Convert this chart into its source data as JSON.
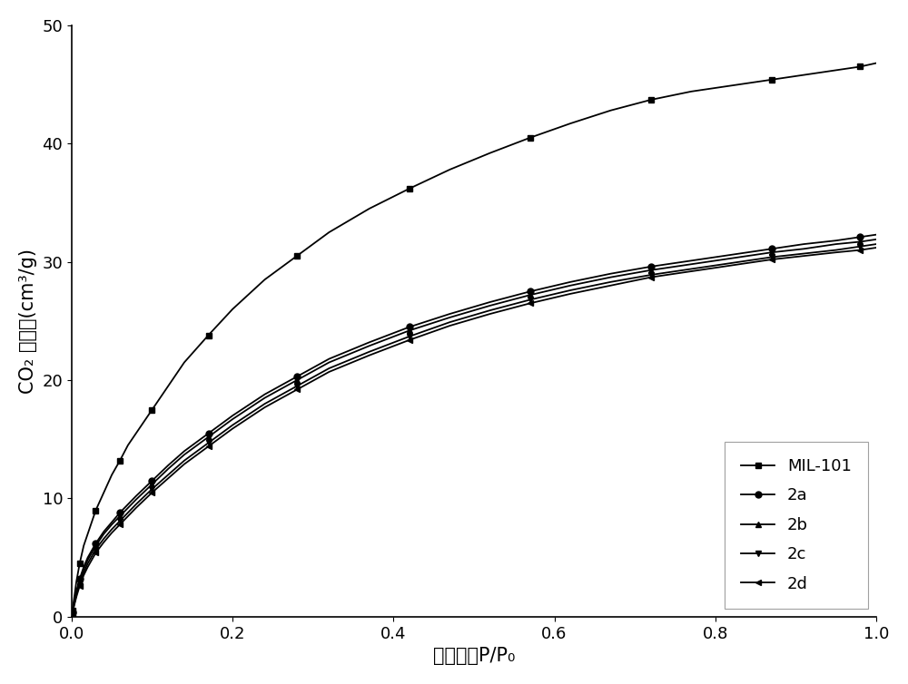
{
  "xlabel": "相对压强P/P₀",
  "ylabel": "CO₂ 吸附量(cm³/g)",
  "xlim": [
    0,
    1.0
  ],
  "ylim": [
    0,
    50
  ],
  "xticks": [
    0.0,
    0.2,
    0.4,
    0.6,
    0.8,
    1.0
  ],
  "yticks": [
    0,
    10,
    20,
    30,
    40,
    50
  ],
  "background_color": "#ffffff",
  "series": [
    {
      "label": "MIL-101",
      "marker": "s",
      "color": "#000000",
      "x": [
        0.001,
        0.003,
        0.006,
        0.01,
        0.015,
        0.02,
        0.03,
        0.04,
        0.05,
        0.06,
        0.07,
        0.08,
        0.1,
        0.12,
        0.14,
        0.17,
        0.2,
        0.24,
        0.28,
        0.32,
        0.37,
        0.42,
        0.47,
        0.52,
        0.57,
        0.62,
        0.67,
        0.72,
        0.77,
        0.82,
        0.87,
        0.91,
        0.95,
        0.98,
        1.0
      ],
      "y": [
        0.5,
        1.5,
        3.0,
        4.5,
        6.0,
        7.0,
        9.0,
        10.5,
        12.0,
        13.2,
        14.5,
        15.5,
        17.5,
        19.5,
        21.5,
        23.8,
        26.0,
        28.5,
        30.5,
        32.5,
        34.5,
        36.2,
        37.8,
        39.2,
        40.5,
        41.7,
        42.8,
        43.7,
        44.4,
        44.9,
        45.4,
        45.8,
        46.2,
        46.5,
        46.8
      ]
    },
    {
      "label": "2a",
      "marker": "o",
      "color": "#000000",
      "x": [
        0.001,
        0.003,
        0.006,
        0.01,
        0.015,
        0.02,
        0.03,
        0.04,
        0.05,
        0.06,
        0.07,
        0.08,
        0.1,
        0.12,
        0.14,
        0.17,
        0.2,
        0.24,
        0.28,
        0.32,
        0.37,
        0.42,
        0.47,
        0.52,
        0.57,
        0.62,
        0.67,
        0.72,
        0.77,
        0.82,
        0.87,
        0.91,
        0.95,
        0.98,
        1.0
      ],
      "y": [
        0.4,
        1.2,
        2.2,
        3.2,
        4.2,
        5.0,
        6.2,
        7.2,
        8.0,
        8.8,
        9.5,
        10.2,
        11.5,
        12.8,
        14.0,
        15.5,
        17.0,
        18.8,
        20.3,
        21.8,
        23.2,
        24.5,
        25.6,
        26.6,
        27.5,
        28.3,
        29.0,
        29.6,
        30.1,
        30.6,
        31.1,
        31.5,
        31.8,
        32.1,
        32.3
      ]
    },
    {
      "label": "2b",
      "marker": "^",
      "color": "#000000",
      "x": [
        0.001,
        0.003,
        0.006,
        0.01,
        0.015,
        0.02,
        0.03,
        0.04,
        0.05,
        0.06,
        0.07,
        0.08,
        0.1,
        0.12,
        0.14,
        0.17,
        0.2,
        0.24,
        0.28,
        0.32,
        0.37,
        0.42,
        0.47,
        0.52,
        0.57,
        0.62,
        0.67,
        0.72,
        0.77,
        0.82,
        0.87,
        0.91,
        0.95,
        0.98,
        1.0
      ],
      "y": [
        0.4,
        1.1,
        2.0,
        3.0,
        4.0,
        4.8,
        6.0,
        7.0,
        7.8,
        8.5,
        9.2,
        9.9,
        11.2,
        12.5,
        13.7,
        15.2,
        16.7,
        18.5,
        20.0,
        21.5,
        22.9,
        24.2,
        25.3,
        26.3,
        27.2,
        28.0,
        28.7,
        29.3,
        29.8,
        30.3,
        30.8,
        31.1,
        31.5,
        31.7,
        31.9
      ]
    },
    {
      "label": "2c",
      "marker": "v",
      "color": "#000000",
      "x": [
        0.001,
        0.003,
        0.006,
        0.01,
        0.015,
        0.02,
        0.03,
        0.04,
        0.05,
        0.06,
        0.07,
        0.08,
        0.1,
        0.12,
        0.14,
        0.17,
        0.2,
        0.24,
        0.28,
        0.32,
        0.37,
        0.42,
        0.47,
        0.52,
        0.57,
        0.62,
        0.67,
        0.72,
        0.77,
        0.82,
        0.87,
        0.91,
        0.95,
        0.98,
        1.0
      ],
      "y": [
        0.3,
        1.0,
        1.9,
        2.8,
        3.7,
        4.5,
        5.7,
        6.6,
        7.4,
        8.1,
        8.8,
        9.5,
        10.8,
        12.0,
        13.2,
        14.7,
        16.2,
        18.0,
        19.5,
        21.0,
        22.4,
        23.7,
        24.9,
        25.9,
        26.8,
        27.6,
        28.3,
        28.9,
        29.4,
        29.9,
        30.4,
        30.7,
        31.0,
        31.3,
        31.5
      ]
    },
    {
      "label": "2d",
      "marker": "<",
      "color": "#000000",
      "x": [
        0.001,
        0.003,
        0.006,
        0.01,
        0.015,
        0.02,
        0.03,
        0.04,
        0.05,
        0.06,
        0.07,
        0.08,
        0.1,
        0.12,
        0.14,
        0.17,
        0.2,
        0.24,
        0.28,
        0.32,
        0.37,
        0.42,
        0.47,
        0.52,
        0.57,
        0.62,
        0.67,
        0.72,
        0.77,
        0.82,
        0.87,
        0.91,
        0.95,
        0.98,
        1.0
      ],
      "y": [
        0.3,
        0.9,
        1.7,
        2.6,
        3.5,
        4.2,
        5.4,
        6.3,
        7.1,
        7.8,
        8.5,
        9.2,
        10.5,
        11.7,
        12.9,
        14.4,
        15.9,
        17.7,
        19.2,
        20.7,
        22.1,
        23.4,
        24.6,
        25.6,
        26.5,
        27.3,
        28.0,
        28.7,
        29.2,
        29.7,
        30.2,
        30.5,
        30.8,
        31.0,
        31.2
      ]
    }
  ],
  "line_width": 1.3,
  "marker_size": 5,
  "marker_every": 3,
  "font_size_label": 15,
  "font_size_tick": 13,
  "font_size_legend": 13
}
